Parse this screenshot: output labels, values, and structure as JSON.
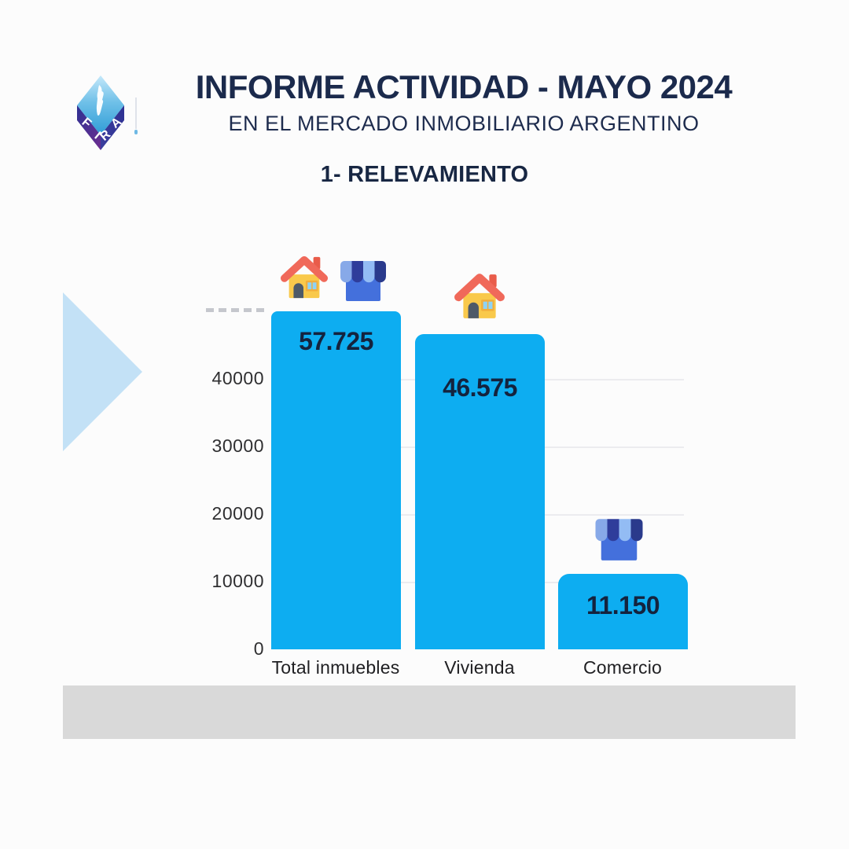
{
  "header": {
    "logo_letters": [
      "F",
      "I",
      "R",
      "A"
    ],
    "title": "INFORME ACTIVIDAD - MAYO 2024",
    "subtitle": "EN EL MERCADO INMOBILIARIO ARGENTINO"
  },
  "section": {
    "title": "1- RELEVAMIENTO"
  },
  "chart_data": {
    "type": "bar",
    "title": "1- RELEVAMIENTO",
    "categories": [
      "Total inmuebles",
      "Vivienda",
      "Comercio"
    ],
    "values": [
      57725,
      46575,
      11150
    ],
    "value_labels": [
      "57.725",
      "46.575",
      "11.150"
    ],
    "ylim": [
      0,
      50000
    ],
    "yticks": [
      0,
      10000,
      20000,
      30000,
      40000
    ],
    "ytick_labels": [
      "0",
      "10000",
      "20000",
      "30000",
      "40000"
    ],
    "grid": true,
    "legend": "none",
    "bar_color": "#0dadf1",
    "value_color": "#14233e",
    "icons_above_bars": [
      [
        "house-icon",
        "store-icon"
      ],
      [
        "house-icon"
      ],
      [
        "store-icon"
      ]
    ]
  },
  "colors": {
    "title_navy": "#1b2a4c",
    "bar_blue": "#0dadf1",
    "triangle_blue": "#c3e1f6",
    "footer_gray": "#d9d9d9",
    "gridline": "#ececef"
  }
}
